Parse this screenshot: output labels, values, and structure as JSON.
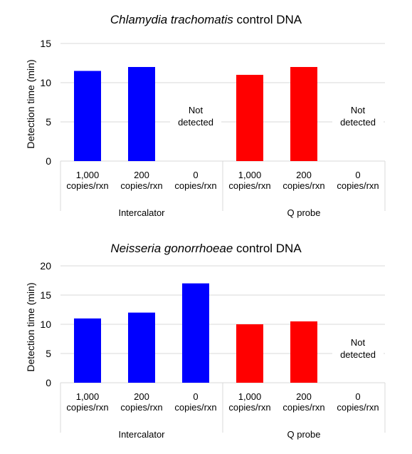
{
  "chart_data": [
    {
      "type": "bar",
      "title_italic": "Chlamydia trachomatis",
      "title_rest": " control DNA",
      "ylabel": "Detection time (min)",
      "ylim": [
        0,
        15
      ],
      "yticks": [
        "0",
        "5",
        "10",
        "15"
      ],
      "grid": true,
      "groups": [
        "Intercalator",
        "Q probe"
      ],
      "categories": [
        [
          "1,000",
          "copies/rxn"
        ],
        [
          "200",
          "copies/rxn"
        ],
        [
          "0",
          "copies/rxn"
        ],
        [
          "1,000",
          "copies/rxn"
        ],
        [
          "200",
          "copies/rxn"
        ],
        [
          "0",
          "copies/rxn"
        ]
      ],
      "values": [
        11.5,
        12,
        null,
        11,
        12,
        null
      ],
      "bar_colors": [
        "#0000ff",
        "#0000ff",
        "#0000ff",
        "#ff0000",
        "#ff0000",
        "#ff0000"
      ],
      "not_detected_text": [
        "Not",
        "detected"
      ]
    },
    {
      "type": "bar",
      "title_italic": "Neisseria gonorrhoeae",
      "title_rest": " control DNA",
      "ylabel": "Detection time (min)",
      "ylim": [
        0,
        20
      ],
      "yticks": [
        "0",
        "5",
        "10",
        "15",
        "20"
      ],
      "grid": true,
      "groups": [
        "Intercalator",
        "Q probe"
      ],
      "categories": [
        [
          "1,000",
          "copies/rxn"
        ],
        [
          "200",
          "copies/rxn"
        ],
        [
          "0",
          "copies/rxn"
        ],
        [
          "1,000",
          "copies/rxn"
        ],
        [
          "200",
          "copies/rxn"
        ],
        [
          "0",
          "copies/rxn"
        ]
      ],
      "values": [
        11,
        12,
        17,
        10,
        10.5,
        null
      ],
      "bar_colors": [
        "#0000ff",
        "#0000ff",
        "#0000ff",
        "#ff0000",
        "#ff0000",
        "#ff0000"
      ],
      "not_detected_text": [
        "Not",
        "detected"
      ]
    }
  ]
}
